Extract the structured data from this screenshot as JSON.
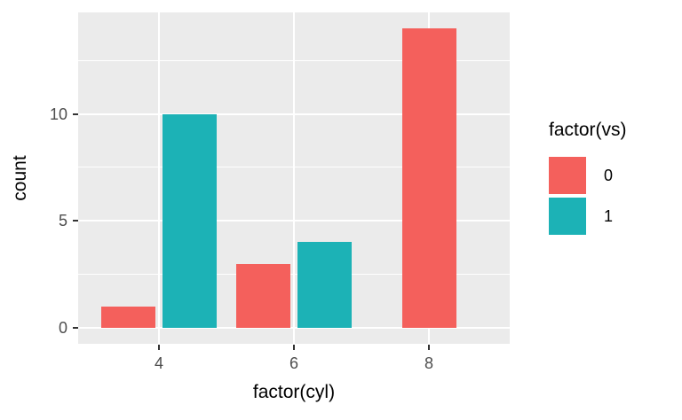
{
  "chart_data": {
    "type": "bar",
    "title": "",
    "xlabel": "factor(cyl)",
    "ylabel": "count",
    "categories": [
      "4",
      "6",
      "8"
    ],
    "series": [
      {
        "name": "0",
        "color": "#F4605C",
        "values": [
          1,
          3,
          14
        ]
      },
      {
        "name": "1",
        "color": "#1CB2B6",
        "values": [
          10,
          4,
          null
        ]
      }
    ],
    "y_ticks": [
      "0",
      "5",
      "10"
    ],
    "y_tick_values": [
      0,
      5,
      10
    ],
    "y_minor_values": [
      2.5,
      7.5,
      12.5
    ],
    "ylim": [
      0,
      14.7
    ],
    "grid": true,
    "legend": {
      "position": "right",
      "title": "factor(vs)",
      "entries": [
        {
          "label": "0",
          "color": "#F4605C"
        },
        {
          "label": "1",
          "color": "#1CB2B6"
        }
      ]
    },
    "colors": {
      "panel_background": "#EBEBEB",
      "gridline": "#FFFFFF",
      "tick_label": "#4D4D4D",
      "tick_mark": "#333333",
      "axis_title": "#000000"
    }
  }
}
